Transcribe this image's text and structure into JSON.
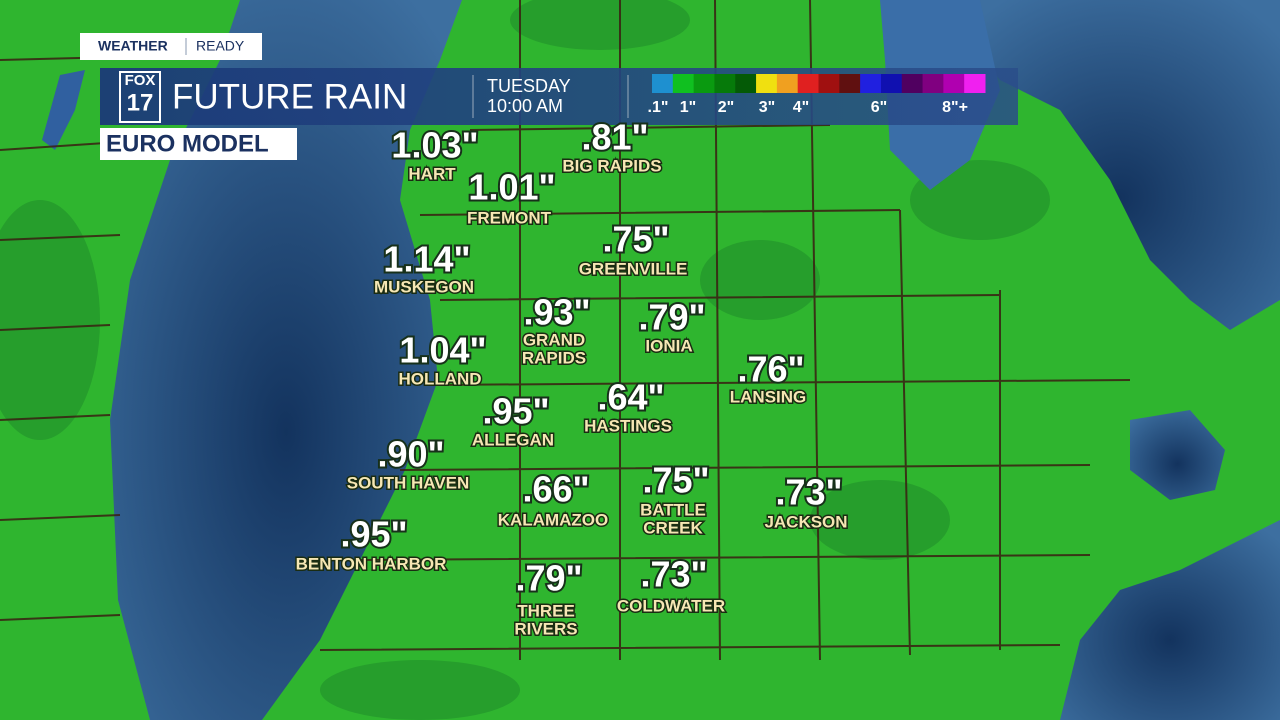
{
  "badge": {
    "left": "WEATHER",
    "right": "READY"
  },
  "header": {
    "logo_top": "FOX",
    "logo_bottom": "17",
    "title": "FUTURE RAIN",
    "day": "TUESDAY",
    "time": "10:00 AM",
    "model": "EURO MODEL"
  },
  "legend": {
    "colors": [
      "#1e90d0",
      "#10c020",
      "#0a9a10",
      "#067a0a",
      "#045a06",
      "#f0e010",
      "#f0a020",
      "#e02020",
      "#a01010",
      "#601010",
      "#2020e0",
      "#1010b0",
      "#500060",
      "#800080",
      "#b000b0",
      "#f020f0"
    ],
    "labels": [
      ".1\"",
      "1\"",
      "2\"",
      "3\"",
      "4\"",
      "6\"",
      "8\"+"
    ]
  },
  "cities": [
    {
      "amount": "1.03\"",
      "name": [
        "HART"
      ]
    },
    {
      "amount": ".81\"",
      "name": [
        "BIG RAPIDS"
      ]
    },
    {
      "amount": "1.01\"",
      "name": [
        "FREMONT"
      ]
    },
    {
      "amount": ".75\"",
      "name": [
        "GREENVILLE"
      ]
    },
    {
      "amount": "1.14\"",
      "name": [
        "MUSKEGON"
      ]
    },
    {
      "amount": ".93\"",
      "name": [
        "GRAND",
        "RAPIDS"
      ]
    },
    {
      "amount": ".79\"",
      "name": [
        "IONIA"
      ]
    },
    {
      "amount": "1.04\"",
      "name": [
        "HOLLAND"
      ]
    },
    {
      "amount": ".76\"",
      "name": [
        "LANSING"
      ]
    },
    {
      "amount": ".64\"",
      "name": [
        "HASTINGS"
      ]
    },
    {
      "amount": ".95\"",
      "name": [
        "ALLEGAN"
      ]
    },
    {
      "amount": ".90\"",
      "name": [
        "SOUTH HAVEN"
      ]
    },
    {
      "amount": ".66\"",
      "name": [
        "KALAMAZOO"
      ]
    },
    {
      "amount": ".75\"",
      "name": [
        "BATTLE",
        "CREEK"
      ]
    },
    {
      "amount": ".73\"",
      "name": [
        "JACKSON"
      ]
    },
    {
      "amount": ".95\"",
      "name": [
        "BENTON HARBOR"
      ]
    },
    {
      "amount": ".79\"",
      "name": [
        "THREE",
        "RIVERS"
      ]
    },
    {
      "amount": ".73\"",
      "name": [
        "COLDWATER"
      ]
    }
  ]
}
